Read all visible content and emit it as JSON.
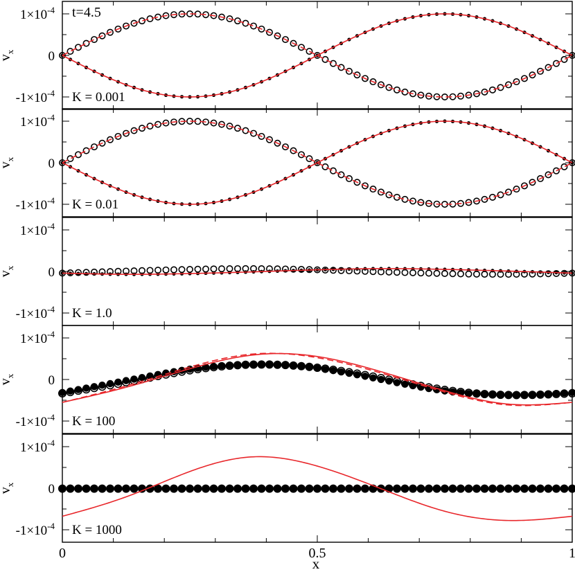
{
  "chart_data": {
    "type": "scatter",
    "time_label": "t=4.5",
    "xlabel": "x",
    "ylabel": "v",
    "ylabel_sub": "x",
    "xlim": [
      0,
      1
    ],
    "ylim": [
      -0.00013,
      0.00013
    ],
    "x_ticks": [
      {
        "value": 0,
        "label": "0"
      },
      {
        "value": 0.5,
        "label": "0.5"
      },
      {
        "value": 1,
        "label": "1"
      }
    ],
    "y_ticks": [
      {
        "value": 0.0001,
        "mant": "1×10",
        "exp": "-4"
      },
      {
        "value": 0,
        "mant": "0",
        "exp": ""
      },
      {
        "value": -0.0001,
        "mant": "-1×10",
        "exp": "-4"
      }
    ],
    "colors": {
      "frame": "#000000",
      "red": "#e8262a",
      "marker": "#000000"
    },
    "panels": [
      {
        "K_label": "K = 0.001",
        "series": [
          {
            "style": "open-circles",
            "x": [
              0,
              0.125,
              0.25,
              0.375,
              0.5,
              0.625,
              0.75,
              0.875,
              1
            ],
            "y": [
              0,
              7.07e-05,
              0.0001,
              7.07e-05,
              0,
              -7.07e-05,
              -0.0001,
              -7.07e-05,
              0
            ]
          },
          {
            "style": "filled-dots",
            "x": [
              0,
              0.125,
              0.25,
              0.375,
              0.5,
              0.625,
              0.75,
              0.875,
              1
            ],
            "y": [
              0,
              -7.07e-05,
              -0.0001,
              -7.07e-05,
              0,
              7.07e-05,
              0.0001,
              7.07e-05,
              0
            ]
          },
          {
            "style": "red-solid",
            "x": [
              0,
              0.125,
              0.25,
              0.375,
              0.5,
              0.625,
              0.75,
              0.875,
              1
            ],
            "y": [
              0,
              -7.07e-05,
              -0.0001,
              -7.07e-05,
              0,
              7.07e-05,
              0.0001,
              7.07e-05,
              0
            ]
          },
          {
            "style": "red-dashed",
            "x": [
              0,
              0.125,
              0.25,
              0.375,
              0.5,
              0.625,
              0.75,
              0.875,
              1
            ],
            "y": [
              0,
              7.07e-05,
              0.0001,
              7.07e-05,
              0,
              -7.07e-05,
              -0.0001,
              -7.07e-05,
              0
            ]
          }
        ]
      },
      {
        "K_label": "K = 0.01",
        "series": [
          {
            "style": "open-circles",
            "x": [
              0,
              0.125,
              0.25,
              0.375,
              0.5,
              0.625,
              0.75,
              0.875,
              1
            ],
            "y": [
              0,
              7.07e-05,
              0.0001,
              7.07e-05,
              0,
              -7.07e-05,
              -0.0001,
              -7.07e-05,
              0
            ]
          },
          {
            "style": "filled-dots",
            "x": [
              0,
              0.125,
              0.25,
              0.375,
              0.5,
              0.625,
              0.75,
              0.875,
              1
            ],
            "y": [
              0,
              -7.07e-05,
              -0.0001,
              -7.07e-05,
              0,
              7.07e-05,
              0.0001,
              7.07e-05,
              0
            ]
          },
          {
            "style": "red-solid",
            "x": [
              0,
              0.125,
              0.25,
              0.375,
              0.5,
              0.625,
              0.75,
              0.875,
              1
            ],
            "y": [
              0,
              -7.07e-05,
              -0.0001,
              -7.07e-05,
              0,
              7.07e-05,
              0.0001,
              7.07e-05,
              0
            ]
          },
          {
            "style": "red-dashed",
            "x": [
              0,
              0.125,
              0.25,
              0.375,
              0.5,
              0.625,
              0.75,
              0.875,
              1
            ],
            "y": [
              0,
              7.07e-05,
              0.0001,
              7.07e-05,
              0,
              -7.07e-05,
              -0.0001,
              -7.07e-05,
              0
            ]
          }
        ]
      },
      {
        "K_label": "K = 1.0",
        "series": [
          {
            "style": "open-circles",
            "x": [
              0,
              0.125,
              0.25,
              0.375,
              0.5,
              0.625,
              0.75,
              0.875,
              1
            ],
            "y": [
              -4e-06,
              9e-07,
              5e-06,
              6.8e-06,
              4e-06,
              -9e-07,
              -5e-06,
              -6.8e-06,
              -4e-06
            ]
          },
          {
            "style": "filled-dots",
            "x": [
              0,
              0.125,
              0.25,
              0.375,
              0.5,
              0.625,
              0.75,
              0.875,
              1
            ],
            "y": [
              -4e-06,
              -6.8e-06,
              -5e-06,
              -9e-07,
              4e-06,
              6.8e-06,
              5e-06,
              9e-07,
              -4e-06
            ]
          },
          {
            "style": "red-solid",
            "x": [
              0,
              0.125,
              0.25,
              0.375,
              0.5,
              0.625,
              0.75,
              0.875,
              1
            ],
            "y": [
              -4e-06,
              -6.8e-06,
              -5e-06,
              -9e-07,
              4e-06,
              6.8e-06,
              5e-06,
              9e-07,
              -4e-06
            ]
          }
        ]
      },
      {
        "K_label": "K = 100",
        "series": [
          {
            "style": "open-circles",
            "x": [
              0,
              0.125,
              0.25,
              0.375,
              0.5,
              0.625,
              0.75,
              0.875,
              1
            ],
            "y": [
              -3.33e-05,
              -6.7e-06,
              2.21e-05,
              3.59e-05,
              2.83e-05,
              3.4e-06,
              -2.51e-05,
              -3.73e-05,
              -3.33e-05
            ]
          },
          {
            "style": "filled-dots",
            "x": [
              0,
              0.125,
              0.25,
              0.375,
              0.5,
              0.625,
              0.75,
              0.875,
              1
            ],
            "y": [
              -3.13e-05,
              -2.7e-06,
              2.48e-05,
              3.64e-05,
              2.7e-05,
              1e-07,
              -2.75e-05,
              -3.78e-05,
              -3.13e-05
            ]
          },
          {
            "style": "red-solid",
            "x": [
              0,
              0.125,
              0.25,
              0.375,
              0.5,
              0.625,
              0.75,
              0.875,
              1
            ],
            "y": [
              -5.5e-05,
              -1.87e-05,
              2.59e-05,
              5.91e-05,
              5.53e-05,
              1.88e-05,
              -2.71e-05,
              -5.93e-05,
              -5.5e-05
            ]
          },
          {
            "style": "red-dashed",
            "x": [
              0,
              0.125,
              0.25,
              0.375,
              0.5,
              0.625,
              0.75,
              0.875,
              1
            ],
            "y": [
              -5.5e-05,
              -1.55e-05,
              3.01e-05,
              6.14e-05,
              5.25e-05,
              1.55e-05,
              -3.01e-05,
              -6.14e-05,
              -5.5e-05
            ]
          }
        ]
      },
      {
        "K_label": "K = 1000",
        "series": [
          {
            "style": "filled-dots",
            "x": [
              0,
              0.25,
              0.5,
              0.75,
              1
            ],
            "y": [
              -1e-06,
              -1e-06,
              -1e-06,
              -1e-06,
              -1e-06
            ]
          },
          {
            "style": "open-circles",
            "x": [
              0,
              0.25,
              0.5,
              0.75,
              1
            ],
            "y": [
              -1e-06,
              -1e-06,
              -1e-06,
              -1e-06,
              -1e-06
            ]
          },
          {
            "style": "red-solid",
            "x": [
              0,
              0.125,
              0.25,
              0.375,
              0.5,
              0.625,
              0.75,
              0.875,
              1
            ],
            "y": [
              -6.75e-05,
              -2.08e-05,
              4.02e-05,
              7.56e-05,
              5.32e-05,
              -1.2e-06,
              -5.55e-05,
              -7.77e-05,
              -6.75e-05
            ]
          }
        ]
      }
    ]
  }
}
